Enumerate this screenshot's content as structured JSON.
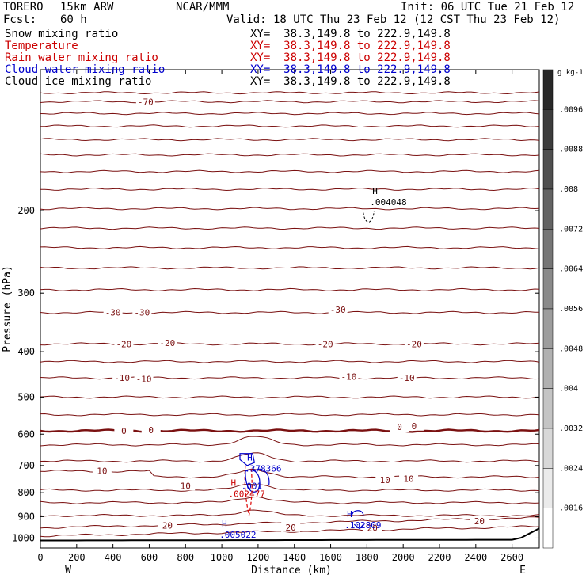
{
  "header": {
    "model": "TORERO",
    "resolution": "15km ARW",
    "org": "NCAR/MMM",
    "init": "Init: 06 UTC Tue 21 Feb 12",
    "fcst_label": "Fcst:",
    "fcst_value": "60 h",
    "valid": "Valid: 18 UTC Thu 23 Feb 12 (12 CST Thu 23 Feb 12)"
  },
  "fields": [
    {
      "name": "Snow mixing ratio",
      "xy": "XY=  38.3,149.8 to 222.9,149.8",
      "color": "#000000"
    },
    {
      "name": "Temperature",
      "xy": "XY=  38.3,149.8 to 222.9,149.8",
      "color": "#cc0000"
    },
    {
      "name": "Rain water mixing ratio",
      "xy": "XY=  38.3,149.8 to 222.9,149.8",
      "color": "#cc0000"
    },
    {
      "name": "Cloud water mixing ratio",
      "xy": "XY=  38.3,149.8 to 222.9,149.8",
      "color": "#0000cc"
    },
    {
      "name": "Cloud ice mixing ratio",
      "xy": "XY=  38.3,149.8 to 222.9,149.8",
      "color": "#000000"
    }
  ],
  "colors": {
    "temperature": "#7a1010",
    "freezing": "#7a1010",
    "rain": "#dd0000",
    "cloud_water": "#0000cc",
    "ground": "#000000"
  },
  "chart_data": {
    "type": "contour",
    "title": "",
    "xlabel": "Distance (km)",
    "ylabel": "Pressure (hPa)",
    "xlim": [
      0,
      2750
    ],
    "ylim": [
      1050,
      100
    ],
    "x_ticks": [
      0,
      200,
      400,
      600,
      800,
      1000,
      1200,
      1400,
      1600,
      1800,
      2000,
      2200,
      2400,
      2600
    ],
    "y_ticks": [
      200,
      300,
      400,
      500,
      600,
      700,
      800,
      900,
      1000
    ],
    "y_scale": "log",
    "x_end_labels": {
      "left": "W",
      "right": "E"
    },
    "temperature_contours": [
      {
        "label": "-70",
        "p": 117
      },
      {
        "label": "-30",
        "p": 330
      },
      {
        "label": "-20",
        "p": 385
      },
      {
        "label": "-10",
        "p": 455
      },
      {
        "label": "0",
        "p": 590
      },
      {
        "label": "10",
        "p": 740
      },
      {
        "label": "20",
        "p": 950
      }
    ],
    "temperature_labels": [
      {
        "text": "-70",
        "x": 580,
        "p": 117
      },
      {
        "text": "-30",
        "x": 400,
        "p": 330
      },
      {
        "text": "-30",
        "x": 560,
        "p": 330
      },
      {
        "text": "-30",
        "x": 1640,
        "p": 325
      },
      {
        "text": "-20",
        "x": 460,
        "p": 385
      },
      {
        "text": "-20",
        "x": 700,
        "p": 383
      },
      {
        "text": "-20",
        "x": 1570,
        "p": 385
      },
      {
        "text": "-20",
        "x": 2060,
        "p": 385
      },
      {
        "text": "-10",
        "x": 450,
        "p": 455
      },
      {
        "text": "-10",
        "x": 570,
        "p": 457
      },
      {
        "text": "-10",
        "x": 1700,
        "p": 452
      },
      {
        "text": "-10",
        "x": 2020,
        "p": 455
      },
      {
        "text": "0",
        "x": 460,
        "p": 590
      },
      {
        "text": "0",
        "x": 610,
        "p": 588
      },
      {
        "text": "0",
        "x": 1980,
        "p": 579
      },
      {
        "text": "0",
        "x": 2060,
        "p": 576
      },
      {
        "text": "10",
        "x": 340,
        "p": 719
      },
      {
        "text": "10",
        "x": 800,
        "p": 773
      },
      {
        "text": "10",
        "x": 1900,
        "p": 751
      },
      {
        "text": "10",
        "x": 2030,
        "p": 747
      },
      {
        "text": "20",
        "x": 700,
        "p": 940
      },
      {
        "text": "20",
        "x": 1380,
        "p": 948
      },
      {
        "text": "20",
        "x": 1830,
        "p": 950
      },
      {
        "text": "20",
        "x": 2420,
        "p": 920
      }
    ],
    "maxima": [
      {
        "label": "H",
        "value": ".004048",
        "x": 1830,
        "p": 190,
        "field": "Snow mixing ratio"
      },
      {
        "label": "H",
        "value": ".378366",
        "x": 1140,
        "p": 705,
        "field": "Cloud water mixing ratio"
      },
      {
        "label": "",
        "value": ".001",
        "x": 1120,
        "p": 768,
        "field": "Cloud water mixing ratio"
      },
      {
        "label": "H",
        "value": ".002477",
        "x": 1050,
        "p": 798,
        "field": "Rain water mixing ratio"
      },
      {
        "label": "H",
        "value": ".102809",
        "x": 1690,
        "p": 930,
        "field": "Cloud water mixing ratio"
      },
      {
        "label": "H",
        "value": ".005022",
        "x": 1000,
        "p": 975,
        "field": "Cloud water mixing ratio"
      }
    ],
    "colorbar": {
      "unit": "g kg-1",
      "ticks": [
        ".0096",
        ".0088",
        ".008",
        ".0072",
        ".0064",
        ".0056",
        ".0048",
        ".004",
        ".0032",
        ".0024",
        ".0016"
      ]
    }
  }
}
